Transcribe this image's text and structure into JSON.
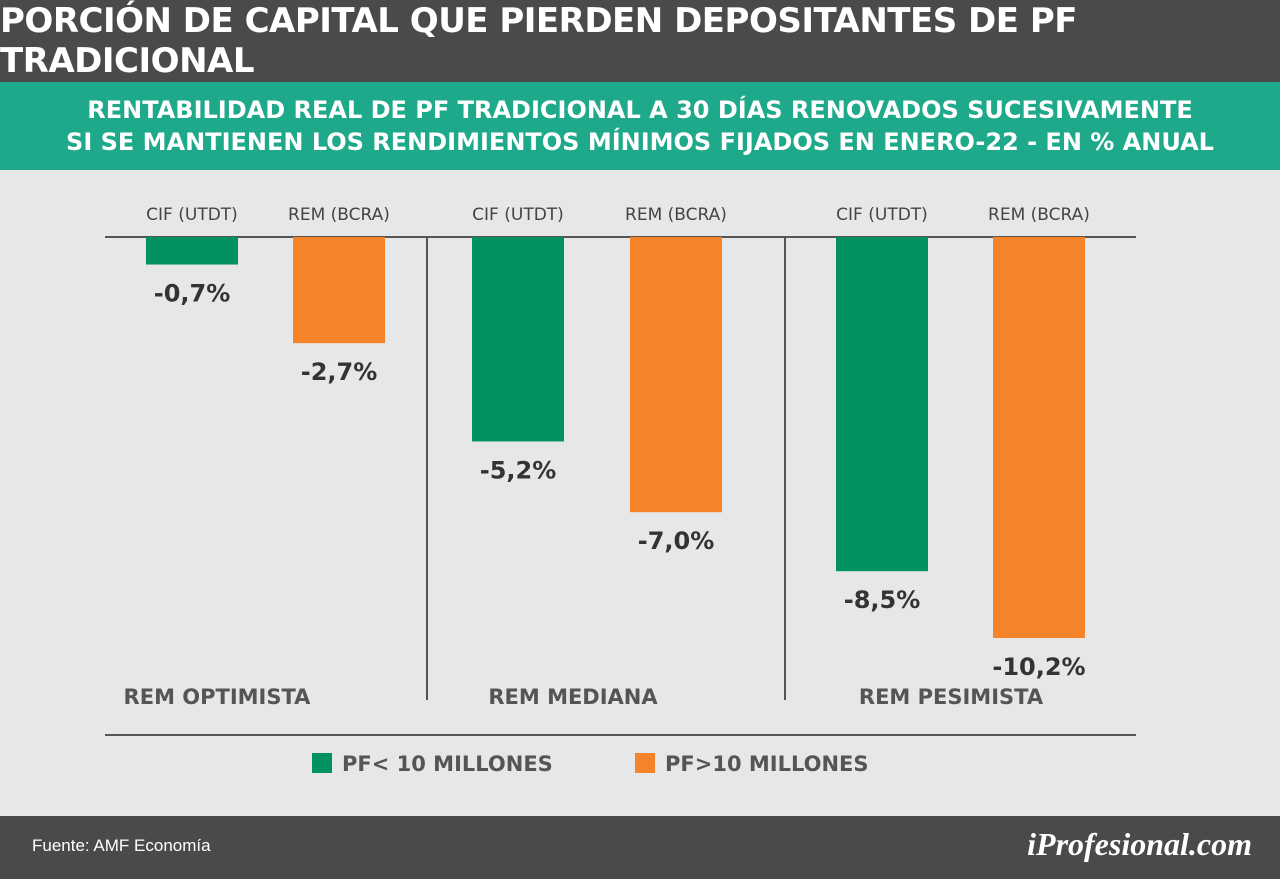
{
  "header": {
    "title": "PORCIÓN DE CAPITAL QUE PIERDEN DEPOSITANTES DE PF TRADICIONAL",
    "subtitle_line1": "RENTABILIDAD REAL DE PF TRADICIONAL A 30 DÍAS RENOVADOS SUCESIVAMENTE",
    "subtitle_line2": "SI SE MANTIENEN LOS RENDIMIENTOS MÍNIMOS FIJADOS EN ENERO-22 - EN % ANUAL"
  },
  "colors": {
    "green": "#00925f",
    "orange": "#f4832a",
    "header_bg": "#4a4a4a",
    "subheader_bg": "#1fa98b",
    "panel_bg": "#e6e7e8"
  },
  "chart_data": {
    "type": "bar",
    "ylim": [
      -10.2,
      0
    ],
    "groups": [
      {
        "name": "REM OPTIMISTA",
        "bars": [
          {
            "label": "CIF (UTDT)",
            "value": -0.7,
            "value_label": "-0,7%",
            "series": "PF< 10 MILLONES"
          },
          {
            "label": "REM (BCRA)",
            "value": -2.7,
            "value_label": "-2,7%",
            "series": "PF>10 MILLONES"
          }
        ]
      },
      {
        "name": "REM MEDIANA",
        "bars": [
          {
            "label": "CIF (UTDT)",
            "value": -5.2,
            "value_label": "-5,2%",
            "series": "PF< 10 MILLONES"
          },
          {
            "label": "REM (BCRA)",
            "value": -7.0,
            "value_label": "-7,0%",
            "series": "PF>10 MILLONES"
          }
        ]
      },
      {
        "name": "REM PESIMISTA",
        "bars": [
          {
            "label": "CIF (UTDT)",
            "value": -8.5,
            "value_label": "-8,5%",
            "series": "PF< 10 MILLONES"
          },
          {
            "label": "REM (BCRA)",
            "value": -10.2,
            "value_label": "-10,2%",
            "series": "PF>10 MILLONES"
          }
        ]
      }
    ],
    "legend": [
      {
        "name": "PF< 10 MILLONES",
        "color": "#00925f"
      },
      {
        "name": "PF>10 MILLONES",
        "color": "#f4832a"
      }
    ],
    "legend_position": "bottom-center",
    "grid": false
  },
  "footer": {
    "source": "Fuente: AMF Economía",
    "brand": "iProfesional.com"
  }
}
